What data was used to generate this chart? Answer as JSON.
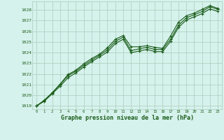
{
  "title": "Graphe pression niveau de la mer (hPa)",
  "bg_color": "#d6f2ec",
  "grid_color": "#aaccbb",
  "line_color": "#1a5c1a",
  "xlim": [
    -0.5,
    23.5
  ],
  "ylim": [
    1018.7,
    1028.8
  ],
  "xticks": [
    0,
    1,
    2,
    3,
    4,
    5,
    6,
    7,
    8,
    9,
    10,
    11,
    12,
    13,
    14,
    15,
    16,
    17,
    18,
    19,
    20,
    21,
    22,
    23
  ],
  "yticks": [
    1019,
    1020,
    1021,
    1022,
    1023,
    1024,
    1025,
    1026,
    1027,
    1028
  ],
  "series1": [
    1019.0,
    1019.5,
    1020.2,
    1021.0,
    1021.85,
    1022.25,
    1022.8,
    1023.3,
    1023.75,
    1024.25,
    1025.05,
    1025.45,
    1024.2,
    1024.35,
    1024.5,
    1024.3,
    1024.3,
    1025.25,
    1026.55,
    1027.25,
    1027.55,
    1027.85,
    1028.3,
    1028.05
  ],
  "series2": [
    1019.0,
    1019.45,
    1020.15,
    1020.85,
    1021.65,
    1022.1,
    1022.65,
    1023.15,
    1023.6,
    1024.05,
    1024.85,
    1025.25,
    1024.0,
    1024.15,
    1024.3,
    1024.1,
    1024.1,
    1025.05,
    1026.35,
    1027.05,
    1027.35,
    1027.65,
    1028.1,
    1027.85
  ],
  "series3": [
    1019.0,
    1019.55,
    1020.25,
    1021.05,
    1021.95,
    1022.35,
    1022.95,
    1023.45,
    1023.85,
    1024.45,
    1025.25,
    1025.6,
    1024.55,
    1024.55,
    1024.65,
    1024.5,
    1024.4,
    1025.55,
    1026.85,
    1027.45,
    1027.7,
    1028.05,
    1028.4,
    1028.15
  ]
}
